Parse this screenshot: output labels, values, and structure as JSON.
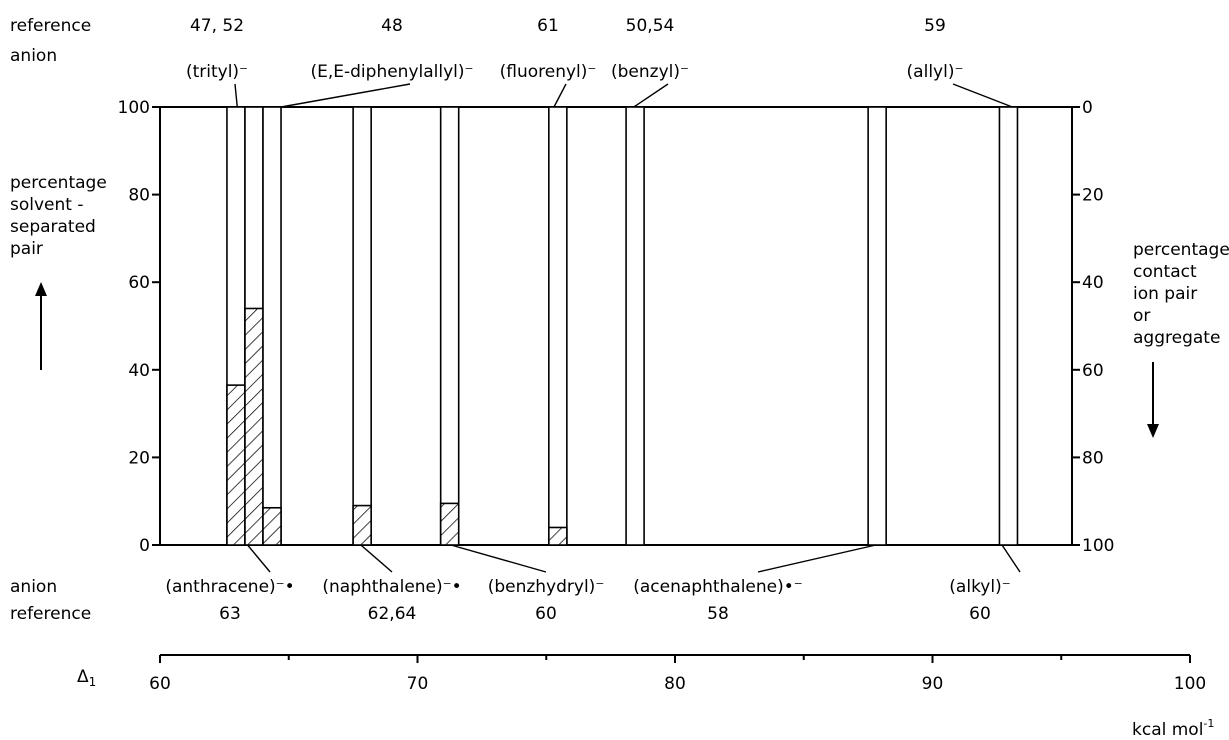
{
  "chart_data": {
    "type": "bar",
    "left_axis": {
      "label_lines": [
        "percentage",
        "solvent -",
        "separated",
        "pair"
      ],
      "ticks": [
        0,
        20,
        40,
        60,
        80,
        100
      ],
      "ylim": [
        0,
        100
      ]
    },
    "right_axis": {
      "label_lines": [
        "percentage",
        "contact",
        "ion pair",
        "or",
        "aggregate"
      ],
      "ticks": [
        0,
        20,
        40,
        60,
        80,
        100
      ]
    },
    "x_axis": {
      "symbol": "Δ",
      "subscript": "1",
      "ticks": [
        60,
        70,
        80,
        90,
        100
      ],
      "xlim": [
        60,
        100
      ],
      "unit": "kcal mol",
      "unit_superscript": "-1"
    },
    "top_header": [
      "reference",
      "anion"
    ],
    "bottom_header": [
      "anion",
      "reference"
    ],
    "top_annotations": [
      {
        "anion": "(trityl)⁻",
        "reference": "47, 52",
        "delta1": 63.0
      },
      {
        "anion": "(E,E-diphenylallyl)⁻",
        "reference": "48",
        "delta1": 64.7
      },
      {
        "anion": "(fluorenyl)⁻",
        "reference": "61",
        "delta1": 75.3
      },
      {
        "anion": "(benzyl)⁻",
        "reference": "50,54",
        "delta1": 78.4
      },
      {
        "anion": "(allyl)⁻",
        "reference": "59",
        "delta1": 93.1
      }
    ],
    "bottom_annotations": [
      {
        "anion": "(anthracene)⁻•",
        "reference": "63",
        "delta1": 63.4
      },
      {
        "anion": "(naphthalene)⁻•",
        "reference": "62,64",
        "delta1": 67.8
      },
      {
        "anion": "(benzhydryl)⁻",
        "reference": "60",
        "delta1": 71.3
      },
      {
        "anion": "(acenaphthalene)•⁻",
        "reference": "58",
        "delta1": 87.8
      },
      {
        "anion": "(alkyl)⁻",
        "reference": "60",
        "delta1": 92.7
      }
    ],
    "bars": [
      {
        "x0": 62.6,
        "x1": 63.3,
        "solvent_separated_pct": 36.5
      },
      {
        "x0": 63.3,
        "x1": 64.0,
        "solvent_separated_pct": 54.0
      },
      {
        "x0": 64.0,
        "x1": 64.7,
        "solvent_separated_pct": 8.5
      },
      {
        "x0": 67.5,
        "x1": 68.2,
        "solvent_separated_pct": 9.0
      },
      {
        "x0": 70.9,
        "x1": 71.6,
        "solvent_separated_pct": 9.5
      },
      {
        "x0": 75.1,
        "x1": 75.8,
        "solvent_separated_pct": 4.0
      },
      {
        "x0": 78.1,
        "x1": 78.8,
        "solvent_separated_pct": 0
      },
      {
        "x0": 87.5,
        "x1": 88.2,
        "solvent_separated_pct": 0
      },
      {
        "x0": 92.6,
        "x1": 93.3,
        "solvent_separated_pct": 0
      }
    ]
  }
}
